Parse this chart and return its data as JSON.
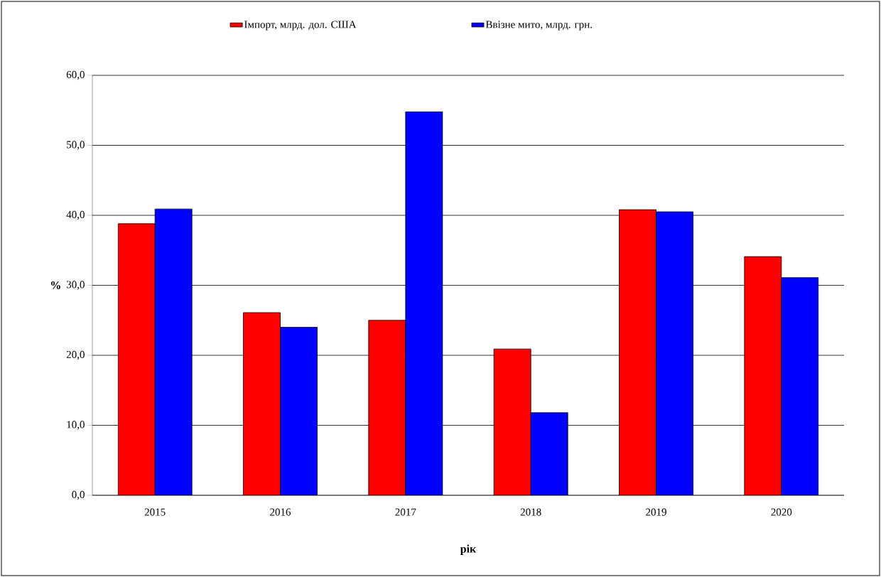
{
  "chart_data": {
    "type": "bar",
    "xlabel": "рік",
    "ylabel": "%",
    "categories": [
      "2015",
      "2016",
      "2017",
      "2018",
      "2019",
      "2020"
    ],
    "series": [
      {
        "name": "Імпорт, млрд. дол. США",
        "color": "#ff0000",
        "values": [
          38.8,
          26.1,
          25.0,
          20.9,
          40.8,
          34.1
        ]
      },
      {
        "name": "Ввізне мито, млрд. грн.",
        "color": "#0000ff",
        "values": [
          40.9,
          24.0,
          54.8,
          11.8,
          40.5,
          31.1
        ]
      }
    ],
    "ylim": [
      0,
      60
    ],
    "yticks": [
      {
        "value": 0,
        "label": "0,0"
      },
      {
        "value": 10,
        "label": "10,0"
      },
      {
        "value": 20,
        "label": "20,0"
      },
      {
        "value": 30,
        "label": "30,0"
      },
      {
        "value": 40,
        "label": "40,0"
      },
      {
        "value": 50,
        "label": "50,0"
      },
      {
        "value": 60,
        "label": "60,0"
      }
    ],
    "grid": "y",
    "legend": "top"
  }
}
